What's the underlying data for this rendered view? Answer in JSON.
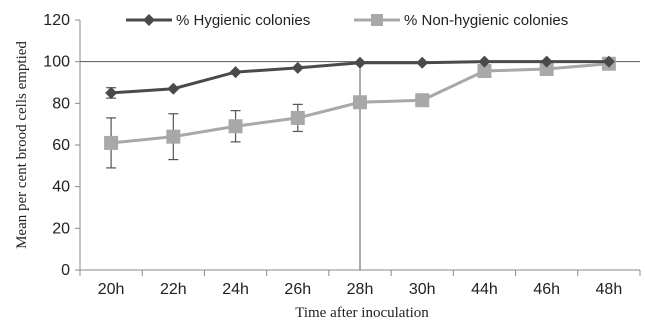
{
  "chart_data": {
    "type": "line",
    "categories": [
      "20h",
      "22h",
      "24h",
      "26h",
      "28h",
      "30h",
      "44h",
      "46h",
      "48h"
    ],
    "series": [
      {
        "name": "% Hygienic colonies",
        "color": "#4a4a4a",
        "marker": "diamond",
        "values": [
          85,
          87,
          95,
          97,
          99.5,
          99.5,
          100,
          100,
          100
        ],
        "error": [
          2.5,
          0,
          0,
          0,
          0,
          0,
          0,
          0,
          0
        ]
      },
      {
        "name": "% Non-hygienic colonies",
        "color": "#a8a8a8",
        "marker": "square",
        "values": [
          61,
          64,
          69,
          73,
          80.5,
          81.5,
          95.5,
          96.5,
          99
        ],
        "error": [
          12,
          11,
          7.5,
          6.5,
          0,
          0,
          0,
          0,
          0
        ]
      }
    ],
    "xlabel": "Time after inoculation",
    "ylabel": "Mean per cent brood cells emptied",
    "ylim": [
      0,
      120
    ],
    "yticks": [
      "0",
      "20",
      "40",
      "60",
      "80",
      "100",
      "120"
    ],
    "reference_lines": {
      "y": 100,
      "x_category": "28h"
    },
    "legend_position": "top"
  }
}
